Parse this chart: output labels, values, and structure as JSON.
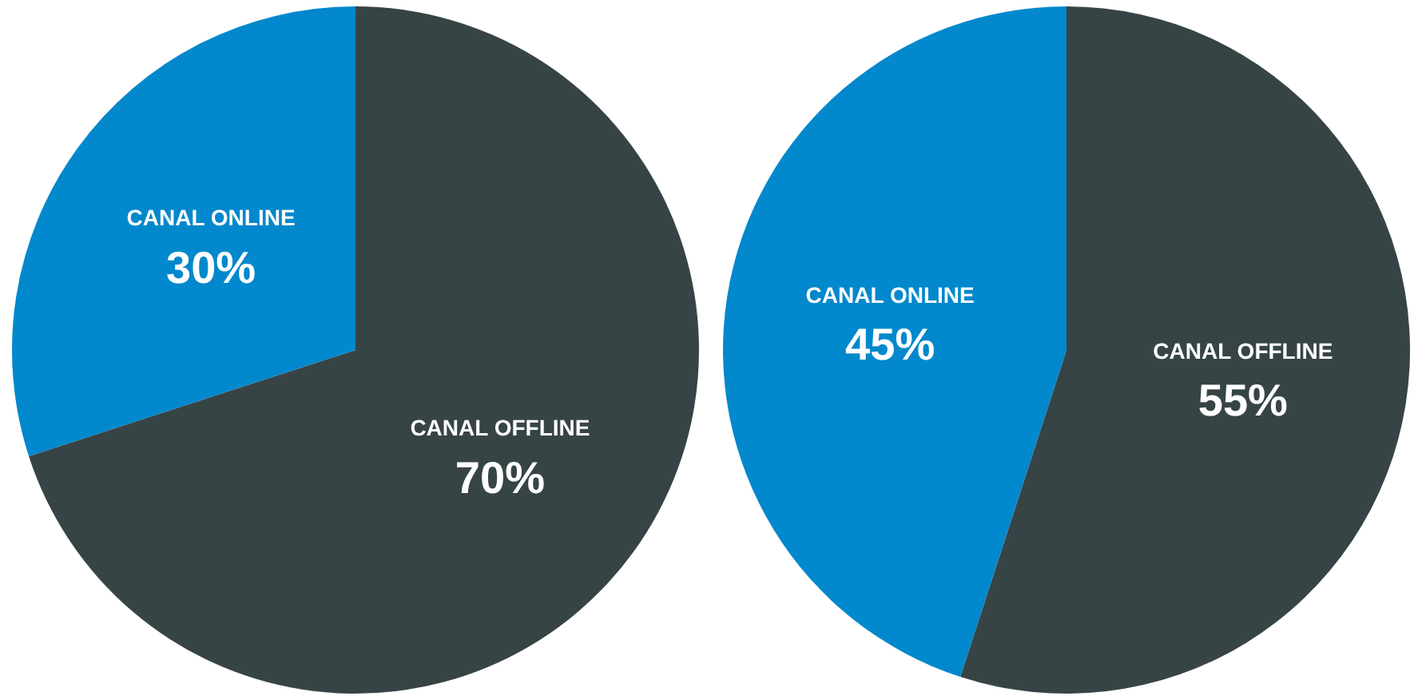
{
  "chart_data": [
    {
      "type": "pie",
      "categories": [
        "CANAL OFFLINE",
        "CANAL ONLINE"
      ],
      "values": [
        70,
        30
      ],
      "colors": [
        "#374446",
        "#0288cc"
      ],
      "value_labels": [
        "70%",
        "30%"
      ],
      "legend": false
    },
    {
      "type": "pie",
      "categories": [
        "CANAL OFFLINE",
        "CANAL ONLINE"
      ],
      "values": [
        55,
        45
      ],
      "colors": [
        "#374446",
        "#0288cc"
      ],
      "value_labels": [
        "55%",
        "45%"
      ],
      "legend": false
    }
  ]
}
